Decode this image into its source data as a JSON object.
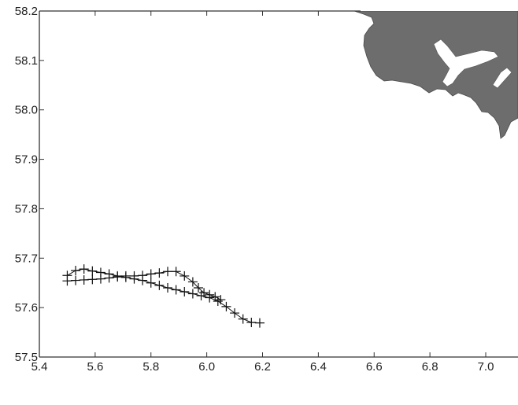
{
  "chart_data": {
    "type": "scatter",
    "xlim": [
      5.4,
      7.1
    ],
    "ylim": [
      57.5,
      58.2
    ],
    "x_ticks": [
      "5.4",
      "5.6",
      "5.8",
      "6.0",
      "6.2",
      "6.4",
      "6.6",
      "6.8",
      "7.0"
    ],
    "x_tick_values": [
      5.4,
      5.6,
      5.8,
      6.0,
      6.2,
      6.4,
      6.6,
      6.8,
      7.0
    ],
    "y_ticks": [
      "57.5",
      "57.6",
      "57.7",
      "57.8",
      "57.9",
      "58.0",
      "58.1",
      "58.2"
    ],
    "y_tick_values": [
      57.5,
      57.6,
      57.7,
      57.8,
      57.9,
      58.0,
      58.1,
      58.2
    ],
    "grid": false,
    "marker": "plus",
    "land_fill": "#6d6d6d",
    "series": [
      {
        "points": [
          [
            5.5,
            57.665
          ],
          [
            5.53,
            57.675
          ],
          [
            5.56,
            57.678
          ],
          [
            5.59,
            57.674
          ],
          [
            5.62,
            57.671
          ],
          [
            5.65,
            57.668
          ],
          [
            5.68,
            57.664
          ],
          [
            5.71,
            57.661
          ],
          [
            5.74,
            57.658
          ],
          [
            5.77,
            57.655
          ],
          [
            5.8,
            57.65
          ],
          [
            5.83,
            57.645
          ],
          [
            5.86,
            57.64
          ],
          [
            5.89,
            57.636
          ],
          [
            5.92,
            57.632
          ],
          [
            5.95,
            57.628
          ],
          [
            5.98,
            57.624
          ],
          [
            6.01,
            57.62
          ],
          [
            6.04,
            57.613
          ],
          [
            6.07,
            57.602
          ],
          [
            6.1,
            57.589
          ],
          [
            6.13,
            57.577
          ],
          [
            6.16,
            57.57
          ],
          [
            6.19,
            57.569
          ]
        ]
      },
      {
        "points": [
          [
            5.5,
            57.654
          ],
          [
            5.53,
            57.655
          ],
          [
            5.56,
            57.656
          ],
          [
            5.59,
            57.657
          ],
          [
            5.62,
            57.658
          ],
          [
            5.65,
            57.66
          ],
          [
            5.68,
            57.662
          ],
          [
            5.71,
            57.664
          ],
          [
            5.74,
            57.664
          ],
          [
            5.77,
            57.665
          ],
          [
            5.8,
            57.668
          ],
          [
            5.83,
            57.67
          ],
          [
            5.86,
            57.673
          ],
          [
            5.89,
            57.673
          ],
          [
            5.92,
            57.664
          ],
          [
            5.95,
            57.652
          ],
          [
            5.97,
            57.64
          ],
          [
            5.99,
            57.63
          ],
          [
            6.01,
            57.626
          ],
          [
            6.03,
            57.622
          ],
          [
            6.05,
            57.616
          ]
        ]
      }
    ]
  }
}
